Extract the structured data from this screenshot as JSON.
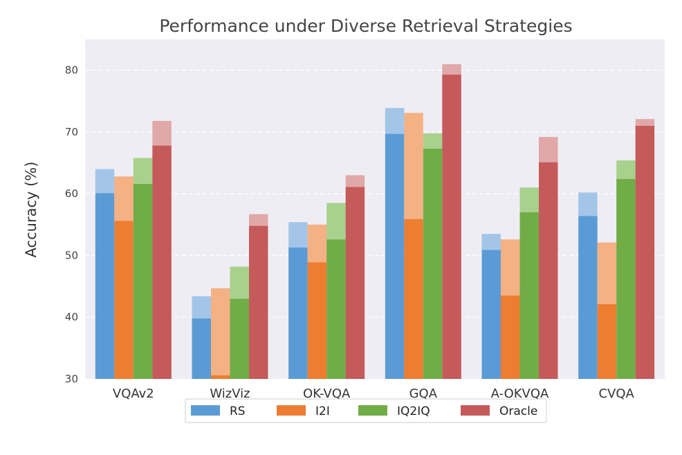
{
  "chart_data": {
    "type": "bar",
    "title": "Performance under Diverse Retrieval Strategies",
    "xlabel": "",
    "ylabel": "Accuracy (%)",
    "ylim": [
      30,
      85
    ],
    "yticks": [
      30,
      40,
      50,
      60,
      70,
      80
    ],
    "grid": "horizontal dashed",
    "legend_position": "bottom-center",
    "categories": [
      "VQAv2",
      "WizViz",
      "OK-VQA",
      "GQA",
      "A-OKVQA",
      "CVQA"
    ],
    "series": [
      {
        "name": "RS",
        "color": "#5b9bd5",
        "light_color": "#a3c6e8",
        "values": [
          60.1,
          39.8,
          51.3,
          69.7,
          50.9,
          56.4
        ],
        "upper_values": [
          64.0,
          43.4,
          55.4,
          73.9,
          53.5,
          60.2
        ]
      },
      {
        "name": "I2I",
        "color": "#ed7d31",
        "light_color": "#f4b183",
        "values": [
          55.6,
          30.6,
          48.9,
          55.9,
          43.5,
          42.1
        ],
        "upper_values": [
          62.8,
          44.7,
          55.0,
          73.1,
          52.6,
          52.1
        ]
      },
      {
        "name": "IQ2IQ",
        "color": "#70ad47",
        "light_color": "#a9d18e",
        "values": [
          61.6,
          43.0,
          52.6,
          67.3,
          57.0,
          62.4
        ],
        "upper_values": [
          65.8,
          48.2,
          58.5,
          69.8,
          61.0,
          65.4
        ]
      },
      {
        "name": "Oracle",
        "color": "#c55a5a",
        "light_color": "#e0a8a8",
        "values": [
          67.8,
          54.8,
          61.1,
          79.3,
          65.1,
          71.0
        ],
        "upper_values": [
          71.8,
          56.7,
          63.0,
          81.0,
          69.2,
          72.1
        ]
      }
    ]
  }
}
